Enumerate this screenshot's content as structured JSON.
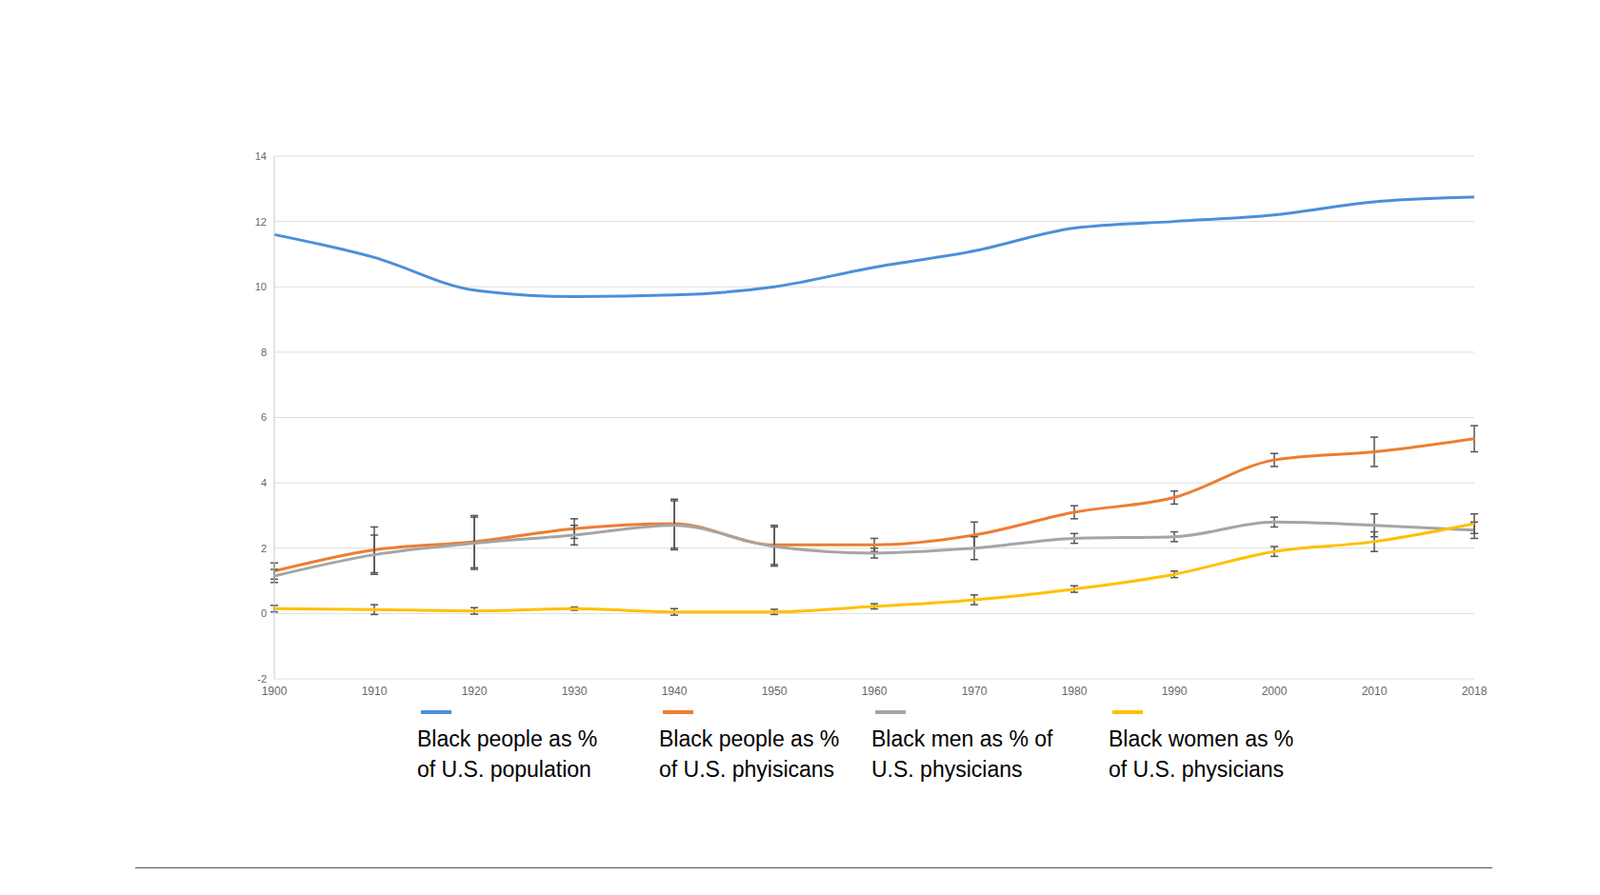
{
  "chart_data": {
    "type": "line",
    "categories": [
      "1900",
      "1910",
      "1920",
      "1930",
      "1940",
      "1950",
      "1960",
      "1970",
      "1980",
      "1990",
      "2000",
      "2010",
      "2018"
    ],
    "series": [
      {
        "name": "Black people as % of U.S. population",
        "color": "#4a90d9",
        "values": [
          11.6,
          10.9,
          9.9,
          9.7,
          9.75,
          10.0,
          10.6,
          11.1,
          11.8,
          12.0,
          12.2,
          12.6,
          12.75
        ]
      },
      {
        "name": "Black people as % of U.S. phyisicans",
        "color": "#ed7d31",
        "values": [
          1.3,
          1.95,
          2.2,
          2.6,
          2.75,
          2.1,
          2.1,
          2.4,
          3.1,
          3.55,
          4.7,
          4.95,
          5.35
        ],
        "errors": [
          0.25,
          0.7,
          0.8,
          0.3,
          0.75,
          0.6,
          0.2,
          0.4,
          0.2,
          0.2,
          0.2,
          0.45,
          0.4
        ]
      },
      {
        "name": "Black men as % of U.S. physicians",
        "color": "#a5a5a5",
        "values": [
          1.15,
          1.8,
          2.15,
          2.4,
          2.7,
          2.05,
          1.85,
          2.0,
          2.3,
          2.35,
          2.8,
          2.7,
          2.55
        ],
        "errors": [
          0.2,
          0.6,
          0.8,
          0.3,
          0.75,
          0.6,
          0.15,
          0.35,
          0.15,
          0.15,
          0.15,
          0.35,
          0.25
        ]
      },
      {
        "name": "Black women as % of U.S. physicians",
        "color": "#ffc000",
        "values": [
          0.15,
          0.12,
          0.08,
          0.15,
          0.05,
          0.05,
          0.22,
          0.42,
          0.75,
          1.2,
          1.9,
          2.2,
          2.75
        ],
        "errors": [
          0.1,
          0.15,
          0.1,
          0.05,
          0.1,
          0.08,
          0.08,
          0.15,
          0.1,
          0.1,
          0.15,
          0.3,
          0.3
        ]
      }
    ],
    "ylim": [
      -2,
      14
    ],
    "yticks": [
      -2,
      0,
      2,
      4,
      6,
      8,
      10,
      12,
      14
    ],
    "grid": true,
    "legend": "bottom"
  }
}
